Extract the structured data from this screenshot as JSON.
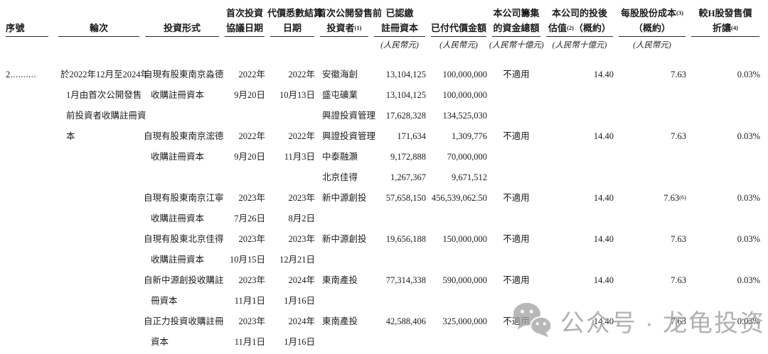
{
  "header": {
    "cols": [
      {
        "top": [],
        "bottom": [
          {
            "t": "序號"
          }
        ],
        "unit": ""
      },
      {
        "top": [],
        "bottom": [
          {
            "t": "輪次"
          }
        ],
        "unit": ""
      },
      {
        "top": [],
        "bottom": [
          {
            "t": "投資形式"
          }
        ],
        "unit": ""
      },
      {
        "top": [
          {
            "t": "首次投資"
          }
        ],
        "bottom": [
          {
            "t": "協議日期"
          }
        ],
        "unit": ""
      },
      {
        "top": [
          {
            "t": "代價悉數結算"
          }
        ],
        "bottom": [
          {
            "t": "日期"
          }
        ],
        "unit": ""
      },
      {
        "top": [
          {
            "t": "首次公開發售前"
          }
        ],
        "bottom": [
          {
            "t": "投資者"
          },
          {
            "s": "(1)"
          }
        ],
        "unit": ""
      },
      {
        "top": [
          {
            "t": "已認繳"
          }
        ],
        "bottom": [
          {
            "t": "註冊資本"
          }
        ],
        "unit": "(人民幣元)"
      },
      {
        "top": [],
        "bottom": [
          {
            "t": "已付代價金額"
          }
        ],
        "unit": "(人民幣元)"
      },
      {
        "top": [
          {
            "t": "本公司籌集"
          }
        ],
        "bottom": [
          {
            "t": "的資金總額"
          }
        ],
        "unit": "(人民幣十億元)"
      },
      {
        "top": [
          {
            "t": "本公司的投後"
          }
        ],
        "bottom": [
          {
            "t": "估值"
          },
          {
            "s": "(2)"
          },
          {
            "t": "（概約）"
          }
        ],
        "unit": "(人民幣十億元)"
      },
      {
        "top": [
          {
            "t": "每股股份成本"
          },
          {
            "s": "(3)"
          }
        ],
        "bottom": [
          {
            "t": "（概約）"
          }
        ],
        "unit": "(人民幣元)"
      },
      {
        "top": [
          {
            "t": "較H股發售價"
          }
        ],
        "bottom": [
          {
            "t": "折讓"
          },
          {
            "s": "(4)"
          }
        ],
        "unit": ""
      }
    ]
  },
  "table": {
    "lines": [
      [
        "2..........",
        {
          "t": "於2022年12月至2024年"
        },
        {
          "t": "自現有股東南京淼德"
        },
        "2022年",
        "2022年",
        "安徽海創",
        "13,104,125",
        "100,000,000",
        "不適用",
        "14.40",
        "7.63",
        "0.03%"
      ],
      [
        "",
        {
          "t": "1月由首次公開發售",
          "ind": true
        },
        {
          "t": "收購註冊資本",
          "ind": true
        },
        "9月20日",
        "10月13日",
        "盛屯礦業",
        "13,104,125",
        "100,000,000",
        "",
        "",
        "",
        ""
      ],
      [
        "",
        {
          "t": "前投資者收購註冊資",
          "ind": true
        },
        "",
        "",
        "",
        "興證投資管理",
        "17,628,328",
        "134,525,030",
        "",
        "",
        "",
        ""
      ],
      [
        "",
        {
          "t": "本",
          "ind": true
        },
        {
          "t": "自現有股東南京浤德"
        },
        "2022年",
        "2022年",
        "興證投資管理",
        "171,634",
        "1,309,776",
        "不適用",
        "14.40",
        "7.63",
        "0.03%"
      ],
      [
        "",
        "",
        {
          "t": "收購註冊資本",
          "ind": true
        },
        "9月20日",
        "11月3日",
        "中泰融灝",
        "9,172,888",
        "70,000,000",
        "",
        "",
        "",
        ""
      ],
      [
        "",
        "",
        "",
        "",
        "",
        "北京佳得",
        "1,267,367",
        "9,671,512",
        "",
        "",
        "",
        ""
      ],
      [
        "",
        "",
        {
          "t": "自現有股東南京江寧"
        },
        "2023年",
        "2023年",
        "新中源創投",
        "57,658,150",
        "456,539,062.50",
        "不適用",
        "14.40",
        {
          "t": "7.63",
          "s": "(6)"
        },
        "0.03%"
      ],
      [
        "",
        "",
        {
          "t": "收購註冊資本",
          "ind": true
        },
        "7月26日",
        "8月2日",
        "",
        "",
        "",
        "",
        "",
        "",
        ""
      ],
      [
        "",
        "",
        {
          "t": "自現有股東北京佳得"
        },
        "2023年",
        "2023年",
        "新中源創投",
        "19,656,188",
        "150,000,000",
        "不適用",
        "14.40",
        "7.63",
        "0.03%"
      ],
      [
        "",
        "",
        {
          "t": "收購註冊資本",
          "ind": true
        },
        "10月15日",
        "12月21日",
        "",
        "",
        "",
        "",
        "",
        "",
        ""
      ],
      [
        "",
        "",
        {
          "t": "自新中源創投收購註"
        },
        "2023年",
        "2024年",
        "東南產投",
        "77,314,338",
        "590,000,000",
        "不適用",
        "14.40",
        "7.63",
        "0.03%"
      ],
      [
        "",
        "",
        {
          "t": "冊資本",
          "ind": true
        },
        "11月1日",
        "1月16日",
        "",
        "",
        "",
        "",
        "",
        "",
        ""
      ],
      [
        "",
        "",
        {
          "t": "自正力投資收購註冊"
        },
        "2023年",
        "2024年",
        "東南產投",
        "42,588,406",
        "325,000,000",
        "不適用",
        "14.40",
        "7.63",
        "0.03%"
      ],
      [
        "",
        "",
        {
          "t": "資本",
          "ind": true
        },
        "11月1日",
        "1月16日",
        "",
        "",
        "",
        "",
        "",
        "",
        ""
      ]
    ]
  },
  "watermark": {
    "text": "公众号 · 龙龟投资",
    "color": "#9c9c9c"
  }
}
